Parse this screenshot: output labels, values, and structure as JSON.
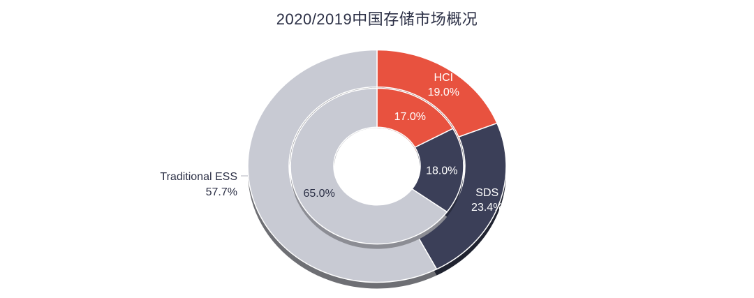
{
  "chart_data": {
    "type": "pie",
    "title": "2020/2019中国存储市场概况",
    "rings": [
      {
        "ring": "outer",
        "slices": [
          {
            "name": "HCI",
            "value": 19.0,
            "label": "19.0%"
          },
          {
            "name": "SDS",
            "value": 23.4,
            "label": "23.4%"
          },
          {
            "name": "Traditional ESS",
            "value": 57.7,
            "label": "57.7%"
          }
        ]
      },
      {
        "ring": "inner",
        "slices": [
          {
            "name": "HCI",
            "value": 17.0,
            "label": "17.0%"
          },
          {
            "name": "SDS",
            "value": 18.0,
            "label": "18.0%"
          },
          {
            "name": "Traditional ESS",
            "value": 65.0,
            "label": "65.0%"
          }
        ]
      }
    ],
    "colors": {
      "HCI": "#e8523f",
      "SDS": "#3b3f58",
      "Traditional ESS": "#c8cad3"
    }
  }
}
